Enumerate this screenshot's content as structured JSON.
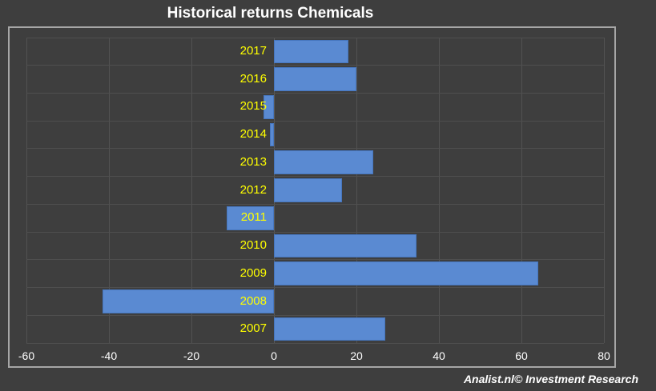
{
  "title": "Historical returns Chemicals",
  "footer": "Analist.nl© Investment Research",
  "colors": {
    "background": "#3E3E3E",
    "bar": "#5A8AD2",
    "bar_border": "#4676BE",
    "year_label": "#FFFF00",
    "axis_label": "#FFFFFF",
    "title": "#FFFFFF",
    "frame_border": "#A6A6A6",
    "gridline": "#525252"
  },
  "chart_data": {
    "type": "bar",
    "orientation": "horizontal",
    "title": "Historical returns Chemicals",
    "xlabel": "",
    "ylabel": "",
    "categories": [
      "2017",
      "2016",
      "2015",
      "2014",
      "2013",
      "2012",
      "2011",
      "2010",
      "2009",
      "2008",
      "2007"
    ],
    "values": [
      18,
      20,
      -2.5,
      -1,
      24,
      16.5,
      -11.5,
      34.5,
      64,
      -41.5,
      27
    ],
    "xlim": [
      -60,
      80
    ],
    "x_ticks": [
      -60,
      -40,
      -20,
      0,
      20,
      40,
      60,
      80
    ],
    "grid": true,
    "legend": false
  }
}
